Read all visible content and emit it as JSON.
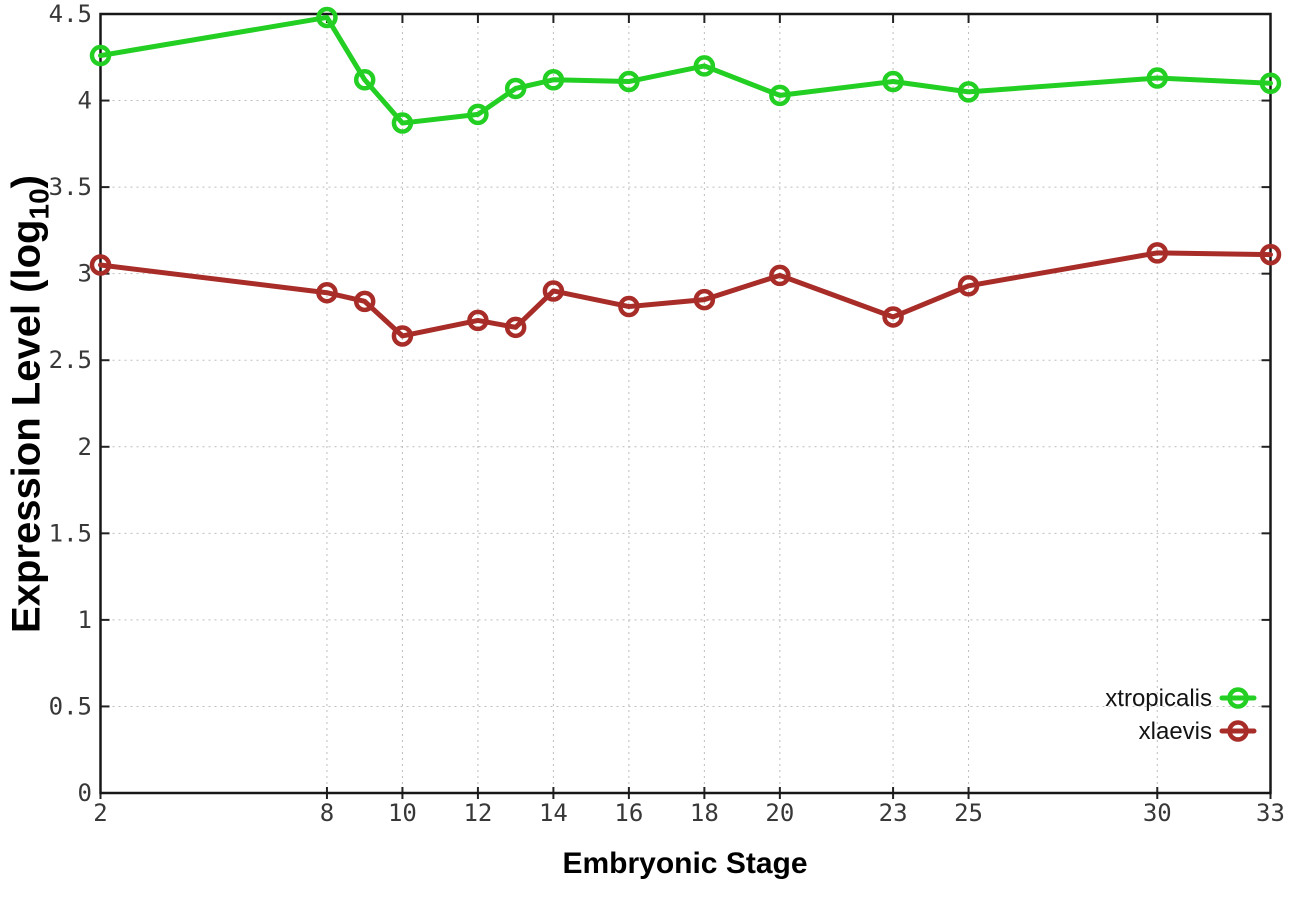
{
  "chart_data": {
    "type": "line",
    "title": "",
    "xlabel": "Embryonic Stage",
    "ylabel": "Expression Level (log10)",
    "ylabel_parts": {
      "base": "Expression Level (log",
      "sub": "10",
      "close": ")"
    },
    "x": [
      2,
      8,
      9,
      10,
      12,
      13,
      14,
      16,
      18,
      20,
      23,
      25,
      30,
      33
    ],
    "series": [
      {
        "name": "xtropicalis",
        "color": "#22cf22",
        "values": [
          4.26,
          4.48,
          4.12,
          3.87,
          3.92,
          4.07,
          4.12,
          4.11,
          4.2,
          4.03,
          4.11,
          4.05,
          4.13,
          4.1
        ]
      },
      {
        "name": "xlaevis",
        "color": "#a82c28",
        "values": [
          3.05,
          2.89,
          2.84,
          2.64,
          2.73,
          2.69,
          2.9,
          2.81,
          2.85,
          2.99,
          2.75,
          2.93,
          3.12,
          3.11
        ]
      }
    ],
    "xlim": [
      2,
      33
    ],
    "ylim": [
      0,
      4.5
    ],
    "x_ticks": [
      {
        "v": 2,
        "label": "2"
      },
      {
        "v": 8,
        "label": "8"
      },
      {
        "v": 10,
        "label": "10"
      },
      {
        "v": 12,
        "label": "12"
      },
      {
        "v": 14,
        "label": "14"
      },
      {
        "v": 16,
        "label": "16"
      },
      {
        "v": 18,
        "label": "18"
      },
      {
        "v": 20,
        "label": "20"
      },
      {
        "v": 23,
        "label": "23"
      },
      {
        "v": 25,
        "label": "25"
      },
      {
        "v": 30,
        "label": "30"
      },
      {
        "v": 33,
        "label": "33"
      }
    ],
    "y_ticks": [
      {
        "v": 0,
        "label": "0"
      },
      {
        "v": 0.5,
        "label": "0.5"
      },
      {
        "v": 1,
        "label": "1"
      },
      {
        "v": 1.5,
        "label": "1.5"
      },
      {
        "v": 2,
        "label": "2"
      },
      {
        "v": 2.5,
        "label": "2.5"
      },
      {
        "v": 3,
        "label": "3"
      },
      {
        "v": 3.5,
        "label": "3.5"
      },
      {
        "v": 4,
        "label": "4"
      },
      {
        "v": 4.5,
        "label": "4.5"
      }
    ],
    "grid": true,
    "marker": "open-circle",
    "legend_position": "inside-bottom-right"
  },
  "colors": {
    "background": "#ffffff",
    "grid": "#bdbdbd",
    "border": "#181818",
    "tick_text": "#383838",
    "axis_title_text": "#000000",
    "legend_text": "#141414"
  }
}
